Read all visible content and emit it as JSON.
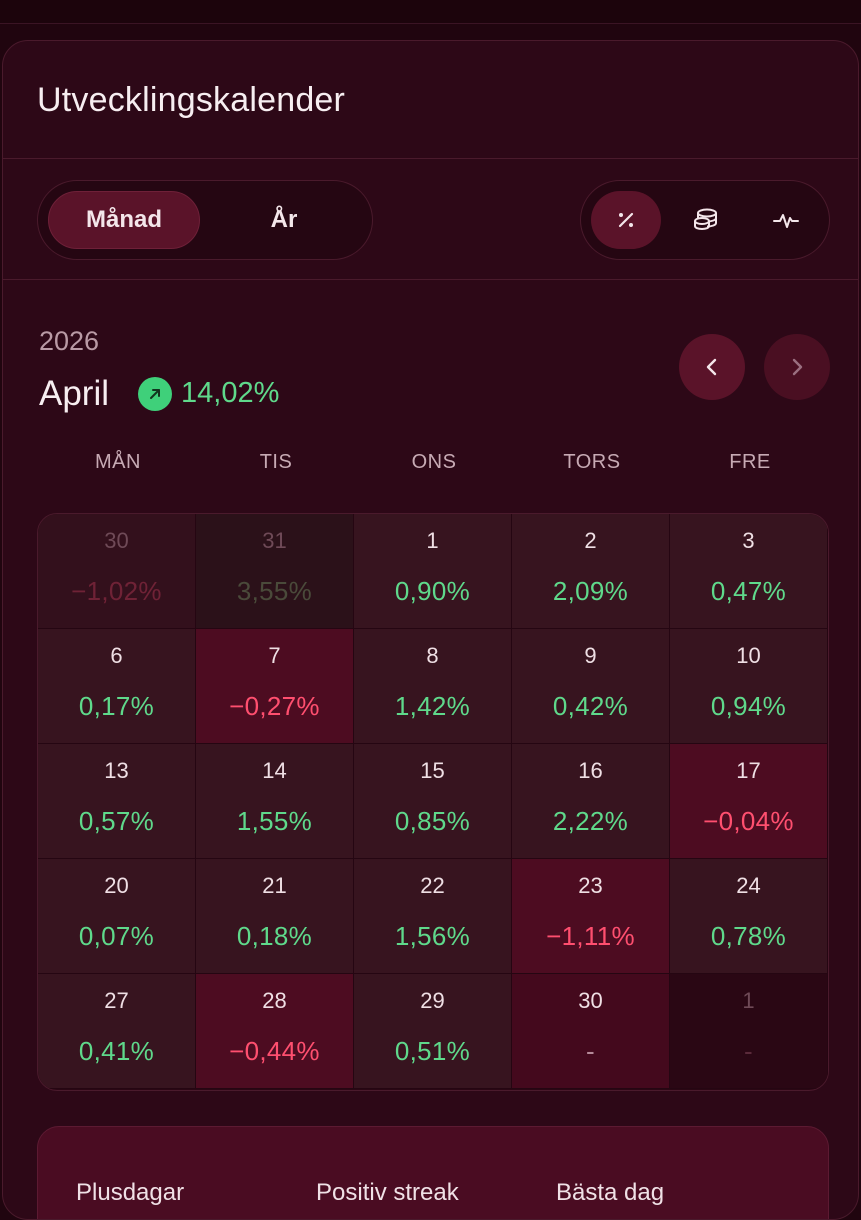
{
  "card": {
    "title": "Utvecklingskalender"
  },
  "period_toggle": {
    "month_label": "Månad",
    "year_label": "År",
    "active": "month"
  },
  "mode_toggle": {
    "icons": [
      "percent-icon",
      "coins-icon",
      "pulse-icon"
    ],
    "active": "percent-icon"
  },
  "header": {
    "year": "2026",
    "month": "April",
    "change": "14,02%",
    "trend_icon": "arrow-up-right-icon"
  },
  "weekdays": [
    "MÅN",
    "TIS",
    "ONS",
    "TORS",
    "FRE"
  ],
  "calendar": [
    [
      {
        "day": "30",
        "value": "−1,02%",
        "type": "muted-neg"
      },
      {
        "day": "31",
        "value": "3,55%",
        "type": "muted-pos"
      },
      {
        "day": "1",
        "value": "0,90%",
        "type": "pos"
      },
      {
        "day": "2",
        "value": "2,09%",
        "type": "pos"
      },
      {
        "day": "3",
        "value": "0,47%",
        "type": "pos"
      }
    ],
    [
      {
        "day": "6",
        "value": "0,17%",
        "type": "pos"
      },
      {
        "day": "7",
        "value": "−0,27%",
        "type": "neg"
      },
      {
        "day": "8",
        "value": "1,42%",
        "type": "pos"
      },
      {
        "day": "9",
        "value": "0,42%",
        "type": "pos"
      },
      {
        "day": "10",
        "value": "0,94%",
        "type": "pos"
      }
    ],
    [
      {
        "day": "13",
        "value": "0,57%",
        "type": "pos"
      },
      {
        "day": "14",
        "value": "1,55%",
        "type": "pos"
      },
      {
        "day": "15",
        "value": "0,85%",
        "type": "pos"
      },
      {
        "day": "16",
        "value": "2,22%",
        "type": "pos"
      },
      {
        "day": "17",
        "value": "−0,04%",
        "type": "neg"
      }
    ],
    [
      {
        "day": "20",
        "value": "0,07%",
        "type": "pos"
      },
      {
        "day": "21",
        "value": "0,18%",
        "type": "pos"
      },
      {
        "day": "22",
        "value": "1,56%",
        "type": "pos"
      },
      {
        "day": "23",
        "value": "−1,11%",
        "type": "neg"
      },
      {
        "day": "24",
        "value": "0,78%",
        "type": "pos"
      }
    ],
    [
      {
        "day": "27",
        "value": "0,41%",
        "type": "pos"
      },
      {
        "day": "28",
        "value": "−0,44%",
        "type": "neg"
      },
      {
        "day": "29",
        "value": "0,51%",
        "type": "pos"
      },
      {
        "day": "30",
        "value": "-",
        "type": "fut"
      },
      {
        "day": "1",
        "value": "-",
        "type": "empty"
      }
    ]
  ],
  "stats": {
    "labels": [
      "Plusdagar",
      "Positiv streak",
      "Bästa dag"
    ]
  },
  "colors": {
    "positive": "#5fd98b",
    "negative": "#ff4f6f",
    "background": "#2d0817",
    "accent": "#5a1329"
  }
}
